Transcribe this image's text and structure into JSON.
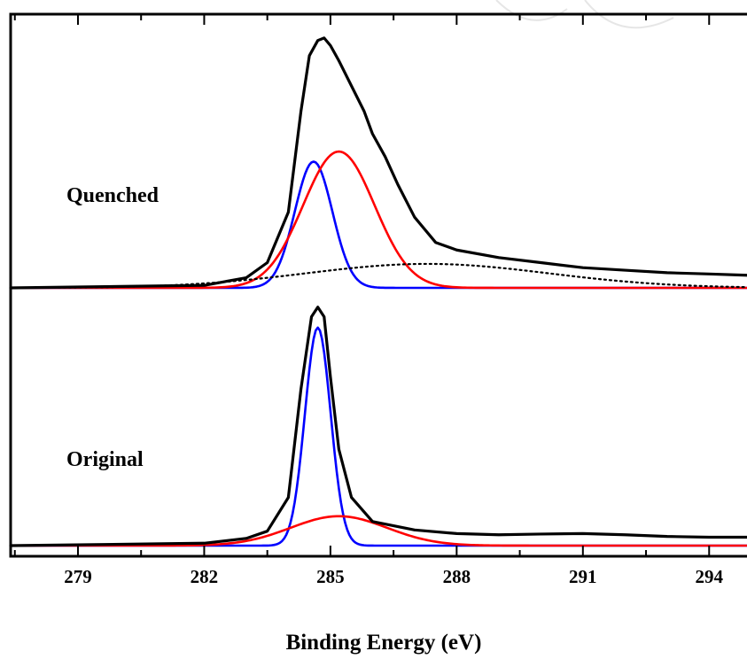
{
  "chart_data": {
    "type": "line",
    "xlabel": "Binding Energy (eV)",
    "ylabel": "",
    "xlim": [
      277.4,
      294.9
    ],
    "x_ticks": [
      "279",
      "282",
      "285",
      "288",
      "291",
      "294"
    ],
    "x_tick_values": [
      279,
      282,
      285,
      288,
      291,
      294
    ],
    "y_scale": "arbitrary intensity, 0-1 per panel",
    "grid": false,
    "panels": [
      {
        "name": "Quenched",
        "label": "Quenched",
        "series": [
          {
            "role": "measured",
            "color": "#000000",
            "style": "solid",
            "points": [
              [
                277.4,
                0.0
              ],
              [
                282.0,
                0.01
              ],
              [
                283.0,
                0.04
              ],
              [
                283.5,
                0.1
              ],
              [
                284.0,
                0.3
              ],
              [
                284.3,
                0.7
              ],
              [
                284.5,
                0.92
              ],
              [
                284.7,
                0.98
              ],
              [
                284.85,
                0.99
              ],
              [
                285.0,
                0.96
              ],
              [
                285.2,
                0.9
              ],
              [
                285.5,
                0.8
              ],
              [
                285.8,
                0.7
              ],
              [
                286.0,
                0.61
              ],
              [
                286.3,
                0.52
              ],
              [
                286.6,
                0.41
              ],
              [
                287.0,
                0.28
              ],
              [
                287.5,
                0.18
              ],
              [
                288.0,
                0.15
              ],
              [
                289.0,
                0.12
              ],
              [
                290.0,
                0.1
              ],
              [
                291.0,
                0.08
              ],
              [
                292.0,
                0.07
              ],
              [
                293.0,
                0.06
              ],
              [
                294.0,
                0.055
              ],
              [
                294.9,
                0.05
              ]
            ]
          },
          {
            "role": "fit",
            "color": "#0000ff",
            "style": "solid",
            "gaussian": {
              "center": 284.6,
              "amplitude": 0.5,
              "fwhm": 1.05
            }
          },
          {
            "role": "fit",
            "color": "#ff0000",
            "style": "solid",
            "gaussian": {
              "center": 285.2,
              "amplitude": 0.54,
              "fwhm": 2.0
            }
          },
          {
            "role": "baseline",
            "color": "#000000",
            "style": "dotted",
            "gaussian": {
              "center": 287.3,
              "amplitude": 0.095,
              "fwhm": 6.8
            }
          }
        ]
      },
      {
        "name": "Original",
        "label": "Original",
        "series": [
          {
            "role": "measured",
            "color": "#000000",
            "style": "solid",
            "points": [
              [
                277.4,
                0.0
              ],
              [
                282.0,
                0.01
              ],
              [
                283.0,
                0.03
              ],
              [
                283.5,
                0.06
              ],
              [
                284.0,
                0.2
              ],
              [
                284.3,
                0.65
              ],
              [
                284.55,
                0.95
              ],
              [
                284.7,
                0.99
              ],
              [
                284.85,
                0.95
              ],
              [
                285.0,
                0.7
              ],
              [
                285.2,
                0.4
              ],
              [
                285.5,
                0.2
              ],
              [
                286.0,
                0.1
              ],
              [
                287.0,
                0.065
              ],
              [
                288.0,
                0.05
              ],
              [
                289.0,
                0.045
              ],
              [
                290.0,
                0.048
              ],
              [
                291.0,
                0.05
              ],
              [
                292.0,
                0.045
              ],
              [
                293.0,
                0.038
              ],
              [
                294.0,
                0.035
              ],
              [
                294.9,
                0.035
              ]
            ]
          },
          {
            "role": "fit",
            "color": "#0000ff",
            "style": "solid",
            "gaussian": {
              "center": 284.7,
              "amplitude": 0.905,
              "fwhm": 0.72
            }
          },
          {
            "role": "fit",
            "color": "#ff0000",
            "style": "solid",
            "gaussian": {
              "center": 285.2,
              "amplitude": 0.122,
              "fwhm": 2.7
            }
          }
        ]
      }
    ]
  }
}
